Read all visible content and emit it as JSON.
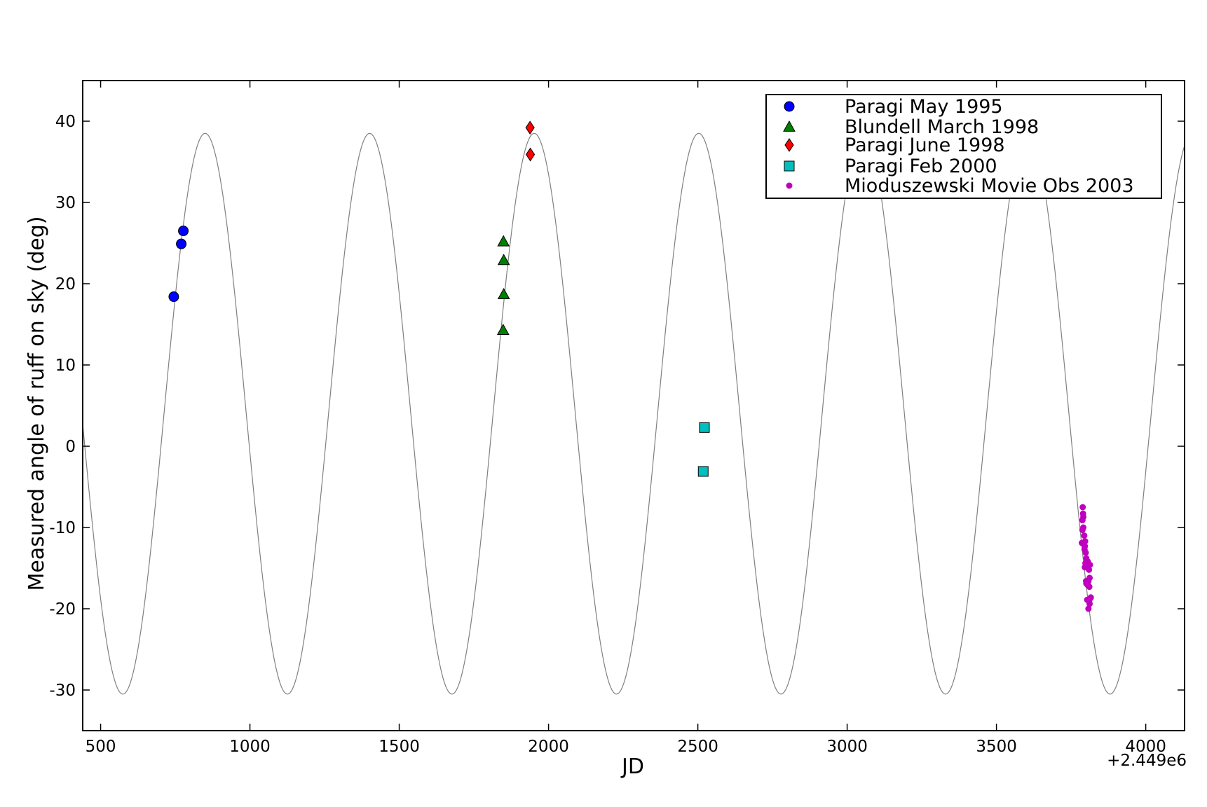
{
  "chart_data": {
    "type": "scatter",
    "xlabel": "JD",
    "ylabel": "Measured angle of ruff on sky (deg)",
    "offset_label": "+2.449e6",
    "xlim": [
      440,
      4130
    ],
    "ylim": [
      -35,
      45
    ],
    "xticks": [
      500,
      1000,
      1500,
      2000,
      2500,
      3000,
      3500,
      4000
    ],
    "xtick_labels": [
      "500",
      "1000",
      "1500",
      "2000",
      "2500",
      "3000",
      "3500",
      "4000"
    ],
    "yticks": [
      40,
      30,
      20,
      10,
      0,
      -10,
      -20,
      -30
    ],
    "ytick_labels": [
      "40",
      "30",
      "20",
      "10",
      "0",
      "-10",
      "-20",
      "-30"
    ],
    "grid": false,
    "legend_position": "top-right",
    "model_curve": {
      "kind": "sinusoid",
      "amplitude": 34.5,
      "offset": 4.0,
      "period": 551,
      "peak_x": 850,
      "color": "#808080"
    },
    "series": [
      {
        "name": "Paragi May 1995",
        "marker": "circle",
        "color": "#0000ff",
        "x": [
          745,
          770,
          777
        ],
        "y": [
          18.4,
          24.9,
          26.5
        ]
      },
      {
        "name": "Blundell March 1998",
        "marker": "triangle",
        "color": "#008000",
        "x": [
          1849,
          1850,
          1850,
          1848
        ],
        "y": [
          25.2,
          22.9,
          18.7,
          14.3
        ]
      },
      {
        "name": "Paragi June 1998",
        "marker": "diamond",
        "color": "#ff0000",
        "x": [
          1938,
          1939
        ],
        "y": [
          39.2,
          35.9
        ]
      },
      {
        "name": "Paragi Feb 2000",
        "marker": "square",
        "color": "#00bfbf",
        "x": [
          2522,
          2518
        ],
        "y": [
          2.3,
          -3.1
        ]
      },
      {
        "name": "Mioduszewski Movie Obs 2003",
        "marker": "small-circle",
        "color": "#bf00bf",
        "x": [
          3789,
          3790,
          3791,
          3788,
          3791,
          3788,
          3794,
          3797,
          3786,
          3796,
          3795,
          3799,
          3801,
          3798,
          3800,
          3796,
          3806,
          3813,
          3810,
          3812,
          3808,
          3801,
          3806,
          3811,
          3800,
          3816,
          3804,
          3815,
          3810,
          3812,
          3808
        ],
        "y": [
          -7.5,
          -8.3,
          -8.7,
          -9.1,
          -10.0,
          -10.3,
          -11.0,
          -11.7,
          -11.9,
          -12.3,
          -12.7,
          -13.1,
          -13.8,
          -14.4,
          -14.7,
          -14.9,
          -14.2,
          -14.6,
          -15.2,
          -16.2,
          -16.6,
          -16.9,
          -17.1,
          -17.3,
          -16.6,
          -18.6,
          -18.9,
          -18.7,
          -19.1,
          -19.4,
          -20.0
        ]
      }
    ]
  }
}
